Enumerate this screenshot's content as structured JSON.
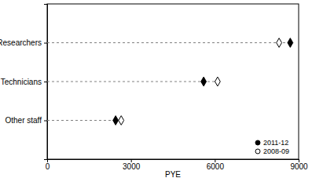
{
  "chart_data": {
    "type": "dot",
    "orientation": "horizontal",
    "line_style": "dashed",
    "categories": [
      "Researchers",
      "Technicians",
      "Other staff"
    ],
    "series": [
      {
        "name": "2011-12",
        "color": "#000000",
        "marker": "diamond",
        "values": [
          8700,
          5600,
          2450
        ]
      },
      {
        "name": "2008-09",
        "color": "#ffffff",
        "marker": "diamond",
        "values": [
          8300,
          6100,
          2650
        ]
      }
    ],
    "x_label": "PYE",
    "xlim": [
      0,
      9000
    ],
    "xticks": [
      0,
      3000,
      6000,
      9000
    ],
    "legend": "lower right"
  }
}
